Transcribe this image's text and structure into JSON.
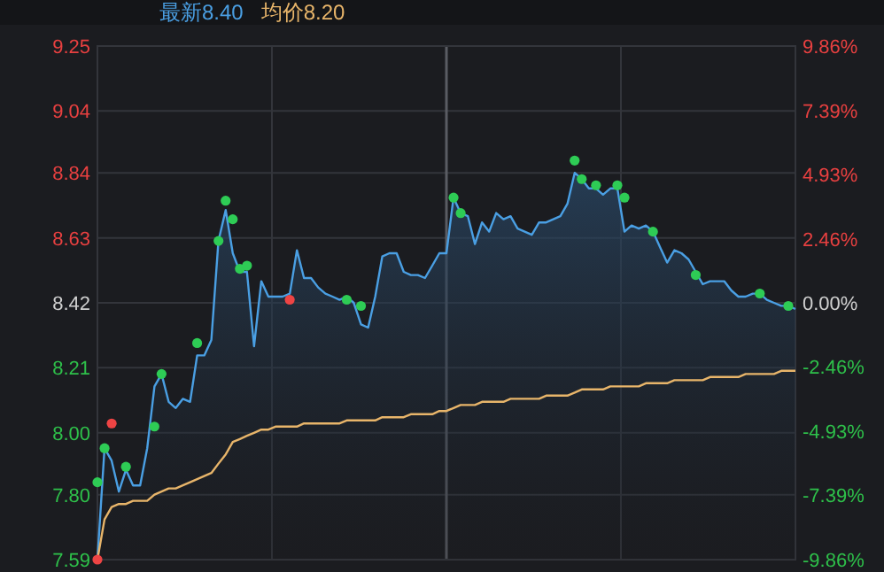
{
  "chart_data": {
    "type": "line",
    "categories": [
      null,
      null,
      null,
      null,
      null,
      null,
      null,
      null,
      null,
      null,
      null,
      null,
      null,
      null,
      null,
      null,
      null,
      null,
      null,
      null,
      null,
      null,
      null,
      null,
      null,
      null,
      null,
      null,
      null,
      null,
      null,
      null,
      null,
      null,
      null,
      null,
      null,
      null,
      null,
      null,
      null,
      null,
      null,
      null,
      null,
      null,
      null,
      null,
      null,
      null,
      null,
      null,
      null,
      null,
      null,
      null,
      null,
      null,
      null,
      null,
      null,
      null,
      null,
      null,
      null,
      null,
      null,
      null,
      null,
      null,
      null,
      null,
      null,
      null,
      null,
      null,
      null,
      null,
      null,
      null,
      null,
      null,
      null,
      null,
      null,
      null,
      null,
      null,
      null,
      null,
      null,
      null,
      null,
      null,
      null,
      null,
      null,
      null,
      null
    ],
    "series": [
      {
        "name": "最新8.40",
        "type": "area",
        "color": "#4a9fe3",
        "values": [
          7.59,
          7.95,
          7.91,
          7.81,
          7.88,
          7.83,
          7.83,
          7.95,
          8.15,
          8.19,
          8.1,
          8.08,
          8.11,
          8.1,
          8.25,
          8.25,
          8.3,
          8.62,
          8.72,
          8.58,
          8.52,
          8.52,
          8.28,
          8.49,
          8.44,
          8.44,
          8.44,
          8.45,
          8.59,
          8.5,
          8.5,
          8.47,
          8.45,
          8.44,
          8.43,
          8.44,
          8.42,
          8.35,
          8.34,
          8.44,
          8.57,
          8.58,
          8.58,
          8.52,
          8.51,
          8.51,
          8.5,
          8.54,
          8.58,
          8.58,
          8.76,
          8.71,
          8.7,
          8.61,
          8.68,
          8.65,
          8.71,
          8.69,
          8.7,
          8.66,
          8.65,
          8.64,
          8.68,
          8.68,
          8.69,
          8.7,
          8.74,
          8.84,
          8.82,
          8.79,
          8.79,
          8.77,
          8.79,
          8.79,
          8.65,
          8.67,
          8.66,
          8.67,
          8.65,
          8.6,
          8.55,
          8.59,
          8.58,
          8.56,
          8.52,
          8.48,
          8.49,
          8.49,
          8.49,
          8.46,
          8.44,
          8.44,
          8.45,
          8.45,
          8.43,
          8.42,
          8.41,
          8.41,
          8.4
        ]
      },
      {
        "name": "均价8.20",
        "color": "#e8b56a",
        "values": [
          7.59,
          7.72,
          7.76,
          7.77,
          7.77,
          7.78,
          7.78,
          7.78,
          7.8,
          7.81,
          7.82,
          7.82,
          7.83,
          7.84,
          7.85,
          7.86,
          7.87,
          7.9,
          7.93,
          7.97,
          7.98,
          7.99,
          8.0,
          8.01,
          8.01,
          8.02,
          8.02,
          8.02,
          8.02,
          8.03,
          8.03,
          8.03,
          8.03,
          8.03,
          8.03,
          8.04,
          8.04,
          8.04,
          8.04,
          8.04,
          8.05,
          8.05,
          8.05,
          8.05,
          8.06,
          8.06,
          8.06,
          8.06,
          8.07,
          8.07,
          8.08,
          8.09,
          8.09,
          8.09,
          8.1,
          8.1,
          8.1,
          8.1,
          8.11,
          8.11,
          8.11,
          8.11,
          8.11,
          8.12,
          8.12,
          8.12,
          8.12,
          8.13,
          8.14,
          8.14,
          8.14,
          8.14,
          8.15,
          8.15,
          8.15,
          8.15,
          8.15,
          8.16,
          8.16,
          8.16,
          8.16,
          8.17,
          8.17,
          8.17,
          8.17,
          8.17,
          8.18,
          8.18,
          8.18,
          8.18,
          8.18,
          8.19,
          8.19,
          8.19,
          8.19,
          8.19,
          8.2,
          8.2,
          8.2
        ]
      },
      {
        "type": "scatter",
        "marker": "circle",
        "color": "#2ecc55",
        "values": [
          7.84,
          7.95,
          null,
          null,
          7.89,
          null,
          null,
          null,
          8.02,
          8.19,
          null,
          null,
          null,
          null,
          8.29,
          null,
          null,
          8.62,
          8.75,
          8.69,
          8.53,
          8.54,
          null,
          null,
          null,
          null,
          null,
          null,
          null,
          null,
          null,
          null,
          null,
          null,
          null,
          8.43,
          null,
          8.41,
          null,
          null,
          null,
          null,
          null,
          null,
          null,
          null,
          null,
          null,
          null,
          null,
          8.76,
          8.71,
          null,
          null,
          null,
          null,
          null,
          null,
          null,
          null,
          null,
          null,
          null,
          null,
          null,
          null,
          null,
          8.88,
          8.82,
          null,
          8.8,
          null,
          null,
          8.8,
          8.76,
          null,
          null,
          null,
          8.65,
          null,
          null,
          null,
          null,
          null,
          8.51,
          null,
          null,
          null,
          null,
          null,
          null,
          null,
          null,
          8.45,
          null,
          null,
          null,
          8.41,
          null
        ]
      },
      {
        "type": "scatter",
        "marker": "circle",
        "color": "#ee4444",
        "values": [
          7.59,
          null,
          8.03,
          null,
          null,
          null,
          null,
          null,
          null,
          null,
          null,
          null,
          null,
          null,
          null,
          null,
          null,
          null,
          null,
          null,
          null,
          null,
          null,
          null,
          null,
          null,
          null,
          8.43,
          null,
          null,
          null,
          null,
          null,
          null,
          null,
          null,
          null,
          null,
          null,
          null,
          null,
          null,
          null,
          null,
          null,
          null,
          null,
          null,
          null,
          null,
          null,
          null,
          null,
          null,
          null,
          null,
          null,
          null,
          null,
          null,
          null,
          null,
          null,
          null,
          null,
          null,
          null,
          null,
          null,
          null,
          null,
          null,
          null,
          null,
          null,
          null,
          null,
          null,
          null,
          null,
          null,
          null,
          null,
          null,
          null,
          null,
          null,
          null,
          null,
          null,
          null,
          null,
          null,
          null,
          null,
          null,
          null,
          null,
          null
        ]
      }
    ],
    "ylim": [
      7.59,
      9.25
    ],
    "yticks": [
      7.59,
      {
        "value": 7.8,
        "label": "7.80"
      },
      {
        "value": 8,
        "label": "8.00"
      },
      8.21,
      8.42,
      8.63,
      8.84,
      9.04,
      9.25
    ],
    "y2lim": [
      -9.86,
      9.86
    ],
    "y2ticks": [
      {
        "value": -9.86,
        "label": "-9.86%"
      },
      {
        "value": -7.39,
        "label": "-7.39%"
      },
      {
        "value": -4.93,
        "label": "-4.93%"
      },
      {
        "value": -2.46,
        "label": "-2.46%"
      },
      {
        "value": 0,
        "label": "0.00%"
      },
      {
        "value": 2.46,
        "label": "2.46%"
      },
      {
        "value": 4.93,
        "label": "4.93%"
      },
      {
        "value": 7.39,
        "label": "7.39%"
      },
      {
        "value": 9.86,
        "label": "9.86%"
      }
    ],
    "grid": true,
    "legend": "top left"
  }
}
